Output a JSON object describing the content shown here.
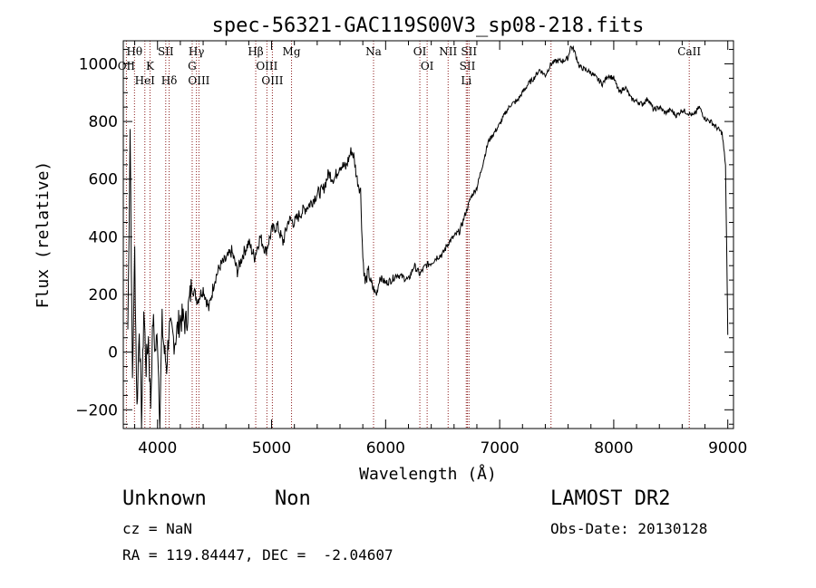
{
  "chart_data": {
    "type": "line",
    "title": "spec-56321-GAC119S00V3_sp08-218.fits",
    "xlabel": "Wavelength (Å)",
    "ylabel": "Flux (relative)",
    "xlim": [
      3700,
      9050
    ],
    "ylim": [
      -265,
      1080
    ],
    "xticks": [
      4000,
      5000,
      6000,
      7000,
      8000,
      9000
    ],
    "yticks": [
      -200,
      0,
      200,
      400,
      600,
      800,
      1000
    ],
    "series": [
      {
        "x": [
          3740,
          3760,
          3780,
          3800,
          3820,
          3840,
          3860,
          3880,
          3900,
          3920,
          3940,
          3960,
          3980,
          4000,
          4020,
          4040,
          4060,
          4080,
          4100,
          4150,
          4200,
          4250,
          4300,
          4350,
          4400,
          4450,
          4500,
          4550,
          4600,
          4650,
          4700,
          4750,
          4800,
          4850,
          4900,
          4950,
          5000,
          5050,
          5100,
          5150,
          5200,
          5250,
          5300,
          5350,
          5400,
          5450,
          5500,
          5550,
          5600,
          5650,
          5700,
          5720,
          5750,
          5780,
          5800,
          5820,
          5850,
          5870,
          5890,
          5920,
          5950,
          6000,
          6050,
          6100,
          6150,
          6200,
          6250,
          6300,
          6350,
          6400,
          6450,
          6500,
          6550,
          6600,
          6650,
          6700,
          6750,
          6800,
          6850,
          6900,
          6950,
          7000,
          7050,
          7100,
          7150,
          7200,
          7250,
          7300,
          7350,
          7400,
          7450,
          7500,
          7550,
          7600,
          7620,
          7650,
          7700,
          7750,
          7800,
          7850,
          7900,
          7950,
          8000,
          8050,
          8100,
          8150,
          8200,
          8250,
          8300,
          8350,
          8400,
          8450,
          8500,
          8550,
          8600,
          8650,
          8700,
          8750,
          8800,
          8850,
          8900,
          8950,
          8980,
          9000
        ],
        "y": [
          80,
          780,
          -100,
          350,
          -200,
          100,
          -240,
          150,
          -50,
          50,
          -180,
          120,
          0,
          60,
          -230,
          100,
          0,
          -50,
          80,
          40,
          120,
          100,
          230,
          180,
          220,
          150,
          250,
          300,
          320,
          350,
          280,
          340,
          380,
          330,
          400,
          350,
          420,
          440,
          380,
          460,
          450,
          480,
          500,
          520,
          550,
          560,
          620,
          600,
          650,
          640,
          700,
          680,
          600,
          560,
          330,
          240,
          280,
          240,
          220,
          200,
          260,
          240,
          250,
          270,
          260,
          250,
          300,
          270,
          300,
          310,
          330,
          340,
          380,
          400,
          420,
          480,
          540,
          570,
          650,
          730,
          760,
          790,
          830,
          860,
          870,
          900,
          930,
          950,
          980,
          960,
          1000,
          1010,
          1010,
          1020,
          1060,
          1050,
          990,
          980,
          970,
          950,
          930,
          960,
          950,
          900,
          920,
          880,
          870,
          860,
          880,
          840,
          850,
          830,
          840,
          820,
          840,
          830,
          820,
          850,
          810,
          800,
          780,
          760,
          650,
          60
        ]
      }
    ],
    "line_markers": [
      {
        "label": "Hθ",
        "x": 3798
      },
      {
        "label": "OII",
        "x": 3727
      },
      {
        "label": "K",
        "x": 3934
      },
      {
        "label": "HeI",
        "x": 3889
      },
      {
        "label": "SII",
        "x": 4072
      },
      {
        "label": "Hδ",
        "x": 4102
      },
      {
        "label": "Hγ",
        "x": 4341
      },
      {
        "label": "G",
        "x": 4304
      },
      {
        "label": "OIII",
        "x": 4363
      },
      {
        "label": "Hβ",
        "x": 4861
      },
      {
        "label": "OIII",
        "x": 4959
      },
      {
        "label": "OIII",
        "x": 5007
      },
      {
        "label": "Mg",
        "x": 5175
      },
      {
        "label": "Na",
        "x": 5894
      },
      {
        "label": "OI",
        "x": 6300
      },
      {
        "label": "OI",
        "x": 6364
      },
      {
        "label": "NII",
        "x": 6548
      },
      {
        "label": "SII",
        "x": 6717
      },
      {
        "label": "SII",
        "x": 6731
      },
      {
        "label": "Li",
        "x": 6707
      },
      {
        "label": "",
        "x": 7450
      },
      {
        "label": "CaII",
        "x": 8662
      }
    ],
    "grid": false
  },
  "info": {
    "class_label": "Unknown",
    "subclass_label": "Non",
    "survey": "LAMOST DR2",
    "cz": "cz = NaN",
    "obs_date": "Obs-Date: 20130128",
    "coords": "RA = 119.84447, DEC =  -2.04607"
  }
}
